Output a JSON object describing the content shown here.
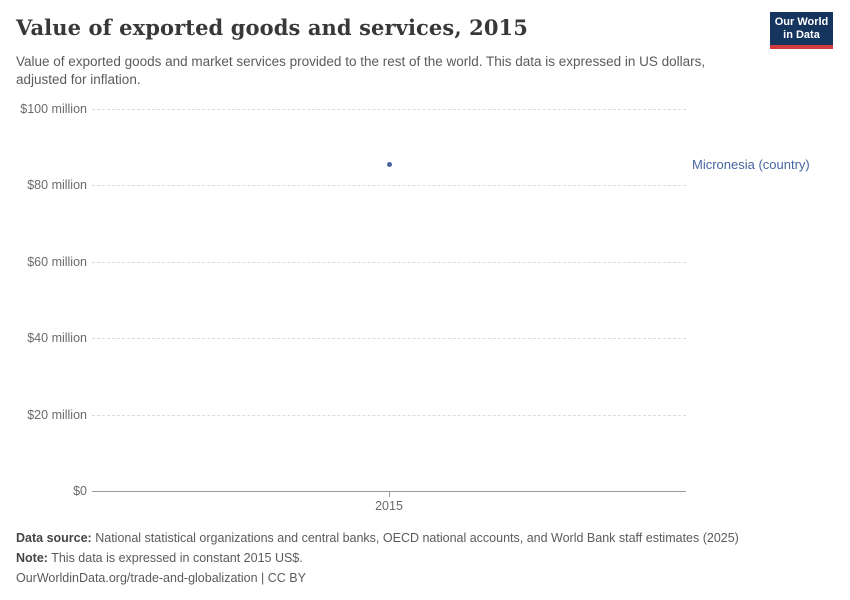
{
  "header": {
    "title": "Value of exported goods and services, 2015",
    "subtitle": "Value of exported goods and market services provided to the rest of the world. This data is expressed in US dollars, adjusted for inflation.",
    "logo": {
      "line1": "Our World",
      "line2": "in Data",
      "bg_color": "#16355e",
      "accent_color": "#d13a3f"
    }
  },
  "chart_data": {
    "type": "scatter",
    "title": "Value of exported goods and services, 2015",
    "xlabel": "",
    "ylabel": "",
    "ylim": [
      0,
      100000000
    ],
    "grid": "horizontal-dashed",
    "legend_position": "right-of-plot",
    "x_ticks": [
      {
        "value": 2015,
        "label": "2015"
      }
    ],
    "y_ticks": [
      {
        "value": 0,
        "label": "$0"
      },
      {
        "value": 20000000,
        "label": "$20 million"
      },
      {
        "value": 40000000,
        "label": "$40 million"
      },
      {
        "value": 60000000,
        "label": "$60 million"
      },
      {
        "value": 80000000,
        "label": "$80 million"
      },
      {
        "value": 100000000,
        "label": "$100 million"
      }
    ],
    "series": [
      {
        "name": "Micronesia (country)",
        "color": "#4766a0",
        "points": [
          {
            "x": 2015,
            "y": 85700000
          }
        ]
      }
    ]
  },
  "footer": {
    "datasource_label": "Data source:",
    "datasource_text": "National statistical organizations and central banks, OECD national accounts, and World Bank staff estimates (2025)",
    "note_label": "Note:",
    "note_text": "This data is expressed in constant 2015 US$.",
    "citation": "OurWorldinData.org/trade-and-globalization | CC BY"
  }
}
